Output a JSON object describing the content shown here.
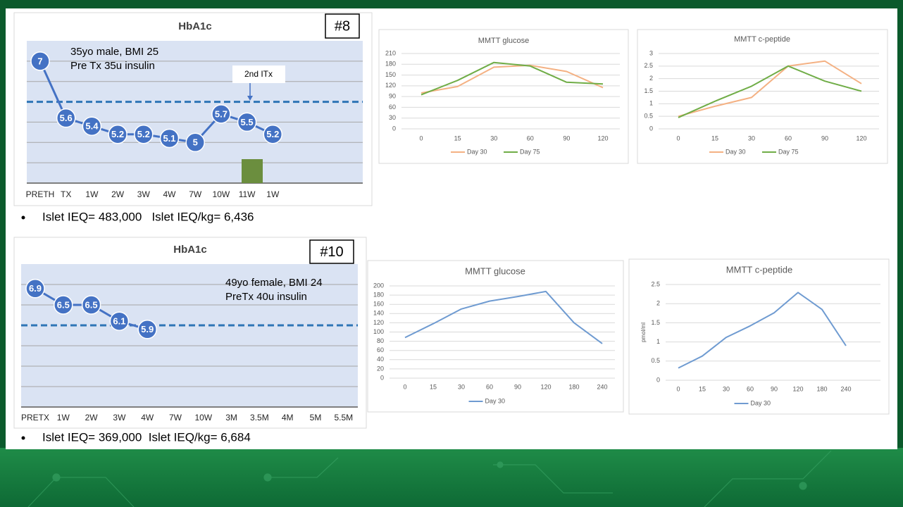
{
  "chart_data": [
    {
      "type": "line",
      "title": "HbA1c",
      "badge": "#8",
      "annotations": [
        "35yo male, BMI 25",
        "Pre Tx 35u insulin",
        "2nd ITx"
      ],
      "categories": [
        "PRETH",
        "TX",
        "1W",
        "2W",
        "3W",
        "4W",
        "7W",
        "10W",
        "11W",
        "1W"
      ],
      "values": [
        7,
        5.6,
        5.4,
        5.2,
        5.2,
        5.1,
        5,
        5.7,
        5.5,
        5.2
      ],
      "color": "#4472c4",
      "ylim": [
        4,
        7.5
      ],
      "gridlines": [
        4.5,
        5,
        5.5,
        6.5,
        7
      ],
      "threshold": 6,
      "threshold_color": "#2e75b6",
      "data_labels": true,
      "plot_background": "#dae3f3"
    },
    {
      "type": "line",
      "title": "MMTT glucose",
      "categories": [
        "0",
        "15",
        "30",
        "60",
        "90",
        "120"
      ],
      "series": [
        {
          "name": "Day 30",
          "color": "#f4b183",
          "values": [
            100,
            118,
            172,
            177,
            160,
            115
          ]
        },
        {
          "name": "Day 75",
          "color": "#70ad47",
          "values": [
            95,
            135,
            185,
            175,
            130,
            125
          ]
        }
      ],
      "ylim": [
        0,
        210
      ],
      "yticks": [
        0,
        30,
        60,
        90,
        120,
        150,
        180,
        210
      ]
    },
    {
      "type": "line",
      "title": "MMTT c-peptide",
      "categories": [
        "0",
        "15",
        "30",
        "60",
        "90",
        "120"
      ],
      "series": [
        {
          "name": "Day 30",
          "color": "#f4b183",
          "values": [
            0.5,
            0.9,
            1.25,
            2.5,
            2.7,
            1.8
          ]
        },
        {
          "name": "Day 75",
          "color": "#70ad47",
          "values": [
            0.45,
            1.1,
            1.7,
            2.5,
            1.9,
            1.5
          ]
        }
      ],
      "ylim": [
        0,
        3
      ],
      "yticks": [
        0,
        0.5,
        1,
        1.5,
        2,
        2.5,
        3
      ]
    },
    {
      "type": "line",
      "title": "HbA1c",
      "badge": "#10",
      "annotations": [
        "49yo female, BMI 24",
        "PreTx 40u insulin"
      ],
      "categories": [
        "PRETX",
        "1W",
        "2W",
        "3W",
        "4W",
        "7W",
        "10W",
        "3M",
        "3.5M",
        "4M",
        "5M",
        "5.5M"
      ],
      "values": [
        6.9,
        6.5,
        6.5,
        6.1,
        5.9,
        null,
        null,
        null,
        null,
        null,
        null,
        null
      ],
      "color": "#4472c4",
      "ylim": [
        4,
        7.5
      ],
      "gridlines": [
        4.5,
        5,
        5.5,
        6.5,
        7
      ],
      "threshold": 6,
      "threshold_color": "#2e75b6",
      "data_labels": true,
      "plot_background": "#dae3f3"
    },
    {
      "type": "line",
      "title": "MMTT glucose",
      "categories": [
        "0",
        "15",
        "30",
        "60",
        "90",
        "120",
        "180",
        "240"
      ],
      "series": [
        {
          "name": "Day 30",
          "color": "#6f9bd1",
          "values": [
            88,
            118,
            150,
            167,
            177,
            188,
            120,
            75
          ]
        }
      ],
      "ylim": [
        0,
        200
      ],
      "yticks": [
        0,
        20,
        40,
        60,
        80,
        100,
        120,
        140,
        160,
        180,
        200
      ]
    },
    {
      "type": "line",
      "title": "MMTT c-peptide",
      "ylabel": "pmol/ml",
      "categories": [
        "0",
        "15",
        "30",
        "60",
        "90",
        "120",
        "180",
        "240"
      ],
      "series": [
        {
          "name": "Day 30",
          "color": "#6f9bd1",
          "values": [
            0.32,
            0.63,
            1.12,
            1.42,
            1.76,
            2.29,
            1.85,
            0.9
          ]
        }
      ],
      "ylim": [
        0,
        2.5
      ],
      "yticks": [
        0,
        0.5,
        1,
        1.5,
        2,
        2.5
      ]
    }
  ],
  "notes": [
    "Islet IEQ= 483,000   Islet IEQ/kg= 6,436",
    "Islet IEQ= 369,000  Islet IEQ/kg= 6,684"
  ]
}
